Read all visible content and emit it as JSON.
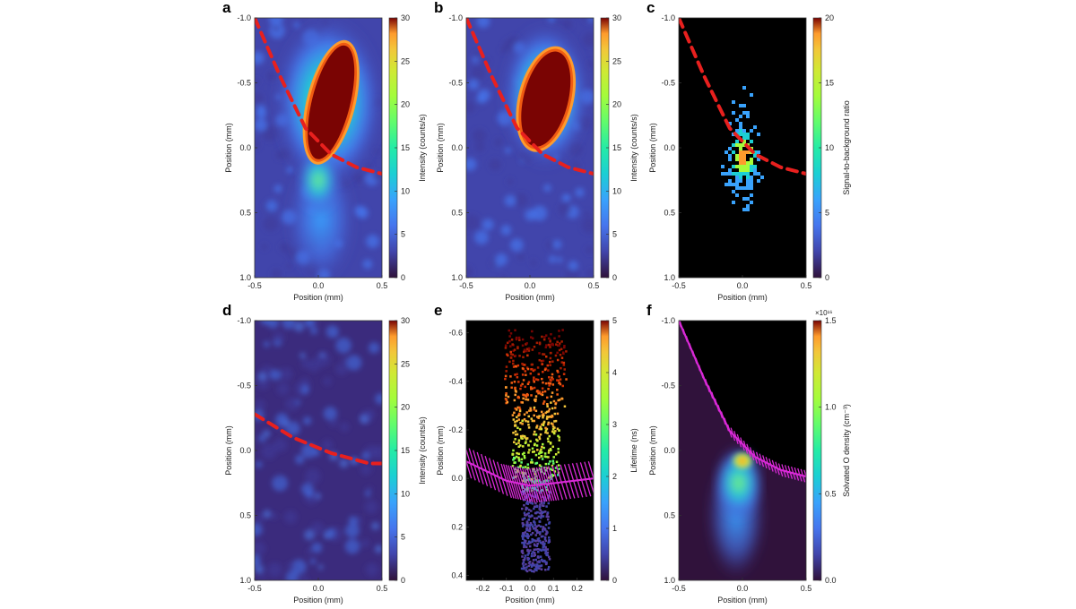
{
  "figure": {
    "panels": [
      {
        "id": "a",
        "letter": "a",
        "xlabel": "Position (mm)",
        "ylabel": "Position (mm)",
        "xticks": [
          "-0.5",
          "0.0",
          "0.5"
        ],
        "yticks": [
          "-1.0",
          "-0.5",
          "0.0",
          "0.5",
          "1.0"
        ],
        "cbar_label": "Intensity (counts/s)",
        "cbar_ticks": [
          "0",
          "5",
          "10",
          "15",
          "20",
          "25",
          "30"
        ]
      },
      {
        "id": "b",
        "letter": "b",
        "xlabel": "Position (mm)",
        "ylabel": "Position (mm)",
        "xticks": [
          "-0.5",
          "0.0",
          "0.5"
        ],
        "yticks": [
          "-1.0",
          "-0.5",
          "0.0",
          "0.5",
          "1.0"
        ],
        "cbar_label": "Intensity (counts/s)",
        "cbar_ticks": [
          "0",
          "5",
          "10",
          "15",
          "20",
          "25",
          "30"
        ]
      },
      {
        "id": "c",
        "letter": "c",
        "xlabel": "Position (mm)",
        "ylabel": "Position (mm)",
        "xticks": [
          "-0.5",
          "0.0",
          "0.5"
        ],
        "yticks": [
          "-1.0",
          "-0.5",
          "0.0",
          "0.5",
          "1.0"
        ],
        "cbar_label": "Signal-to-background ratio",
        "cbar_ticks": [
          "0",
          "5",
          "10",
          "15",
          "20"
        ]
      },
      {
        "id": "d",
        "letter": "d",
        "xlabel": "Position (mm)",
        "ylabel": "Position (mm)",
        "xticks": [
          "-0.5",
          "0.0",
          "0.5"
        ],
        "yticks": [
          "-1.0",
          "-0.5",
          "0.0",
          "0.5",
          "1.0"
        ],
        "cbar_label": "Intensity (counts/s)",
        "cbar_ticks": [
          "0",
          "5",
          "10",
          "15",
          "20",
          "25",
          "30"
        ]
      },
      {
        "id": "e",
        "letter": "e",
        "xlabel": "Position (mm)",
        "ylabel": "Position (mm)",
        "xticks": [
          "-0.2",
          "-0.1",
          "0.0",
          "0.1",
          "0.2"
        ],
        "yticks": [
          "-0.6",
          "-0.4",
          "-0.2",
          "0.0",
          "0.2",
          "0.4"
        ],
        "cbar_label": "Lifetime (ns)",
        "cbar_ticks": [
          "0",
          "1",
          "2",
          "3",
          "4",
          "5"
        ]
      },
      {
        "id": "f",
        "letter": "f",
        "xlabel": "Position (mm)",
        "ylabel": "Position (mm)",
        "xticks": [
          "-0.5",
          "0.0",
          "0.5"
        ],
        "yticks": [
          "-1.0",
          "-0.5",
          "0.0",
          "0.5",
          "1.0"
        ],
        "cbar_label": "Solvated O density (cm⁻³)",
        "cbar_ticks": [
          "0.0",
          "0.5",
          "1.0",
          "1.5"
        ],
        "cbar_exponent": "×10¹⁶"
      }
    ]
  },
  "colors": {
    "colormap": "turbo",
    "dashed_line": "#e8201e",
    "fit_line": "#d829d6",
    "masked_bg": "#000000"
  },
  "chart_data": [
    {
      "panel": "a",
      "type": "heatmap",
      "xlim": [
        -0.5,
        0.5
      ],
      "ylim": [
        -1.0,
        1.0
      ],
      "clim": [
        0,
        30
      ],
      "features": {
        "saturated_blob": {
          "x_range": [
            -0.05,
            0.25
          ],
          "y_range": [
            -0.8,
            0.1
          ],
          "value": 30
        },
        "plume_below": {
          "x_center": 0.0,
          "y_range": [
            0.1,
            1.0
          ]
        },
        "background": 4
      },
      "boundary_dashed": {
        "x": [
          -0.5,
          -0.3,
          -0.1,
          0.1,
          0.3,
          0.5
        ],
        "y": [
          -1.0,
          -0.55,
          -0.15,
          0.05,
          0.15,
          0.2
        ]
      }
    },
    {
      "panel": "b",
      "type": "heatmap",
      "xlim": [
        -0.5,
        0.5
      ],
      "ylim": [
        -1.0,
        1.0
      ],
      "clim": [
        0,
        30
      ],
      "features": {
        "saturated_blob": {
          "x_range": [
            -0.05,
            0.3
          ],
          "y_range": [
            -0.75,
            0.0
          ],
          "value": 30
        },
        "background": 4
      },
      "boundary_dashed": {
        "x": [
          -0.5,
          -0.3,
          -0.1,
          0.1,
          0.3,
          0.5
        ],
        "y": [
          -1.0,
          -0.55,
          -0.15,
          0.05,
          0.15,
          0.2
        ]
      }
    },
    {
      "panel": "c",
      "type": "heatmap",
      "xlim": [
        -0.5,
        0.5
      ],
      "ylim": [
        -1.0,
        1.0
      ],
      "clim": [
        0,
        20
      ],
      "features": {
        "peak": {
          "x": 0.0,
          "y": 0.05,
          "value": 20
        },
        "masked": "below threshold"
      },
      "boundary_dashed": {
        "x": [
          -0.5,
          -0.3,
          -0.1,
          0.1,
          0.3,
          0.5
        ],
        "y": [
          -1.0,
          -0.55,
          -0.15,
          0.05,
          0.15,
          0.2
        ]
      }
    },
    {
      "panel": "d",
      "type": "heatmap",
      "xlim": [
        -0.5,
        0.5
      ],
      "ylim": [
        -1.0,
        1.0
      ],
      "clim": [
        0,
        30
      ],
      "features": {
        "background": 3
      },
      "boundary_dashed": {
        "x": [
          -0.5,
          -0.2,
          0.1,
          0.4,
          0.5
        ],
        "y": [
          -0.28,
          -0.1,
          0.02,
          0.1,
          0.1
        ]
      }
    },
    {
      "panel": "e",
      "type": "scatter",
      "xlim": [
        -0.27,
        0.27
      ],
      "ylim": [
        -0.65,
        0.42
      ],
      "clim": [
        0,
        5
      ],
      "features": {
        "high_lifetime": {
          "y_range": [
            -0.6,
            -0.3
          ],
          "value": 5
        },
        "mid": {
          "y_range": [
            -0.3,
            0.0
          ],
          "value": 2.5
        },
        "low_tail": {
          "y_range": [
            0.0,
            0.4
          ],
          "value": 0.5
        }
      },
      "fit_band": {
        "x": [
          -0.27,
          -0.1,
          0.0,
          0.1,
          0.27
        ],
        "y": [
          -0.07,
          0.01,
          0.03,
          0.02,
          0.0
        ],
        "half_width": 0.07
      }
    },
    {
      "panel": "f",
      "type": "heatmap",
      "xlim": [
        -0.5,
        0.5
      ],
      "ylim": [
        -1.0,
        1.0
      ],
      "clim": [
        0,
        1.5
      ],
      "features": {
        "peak": {
          "x": 0.0,
          "y": 0.05,
          "value": 1.5
        },
        "plume": {
          "x_center": -0.05,
          "y_range": [
            0.0,
            1.0
          ]
        }
      },
      "fit_band": {
        "x": [
          -0.5,
          -0.3,
          -0.1,
          0.1,
          0.3,
          0.5
        ],
        "y": [
          -1.0,
          -0.55,
          -0.15,
          0.05,
          0.15,
          0.2
        ],
        "half_width": 0.05
      }
    }
  ]
}
